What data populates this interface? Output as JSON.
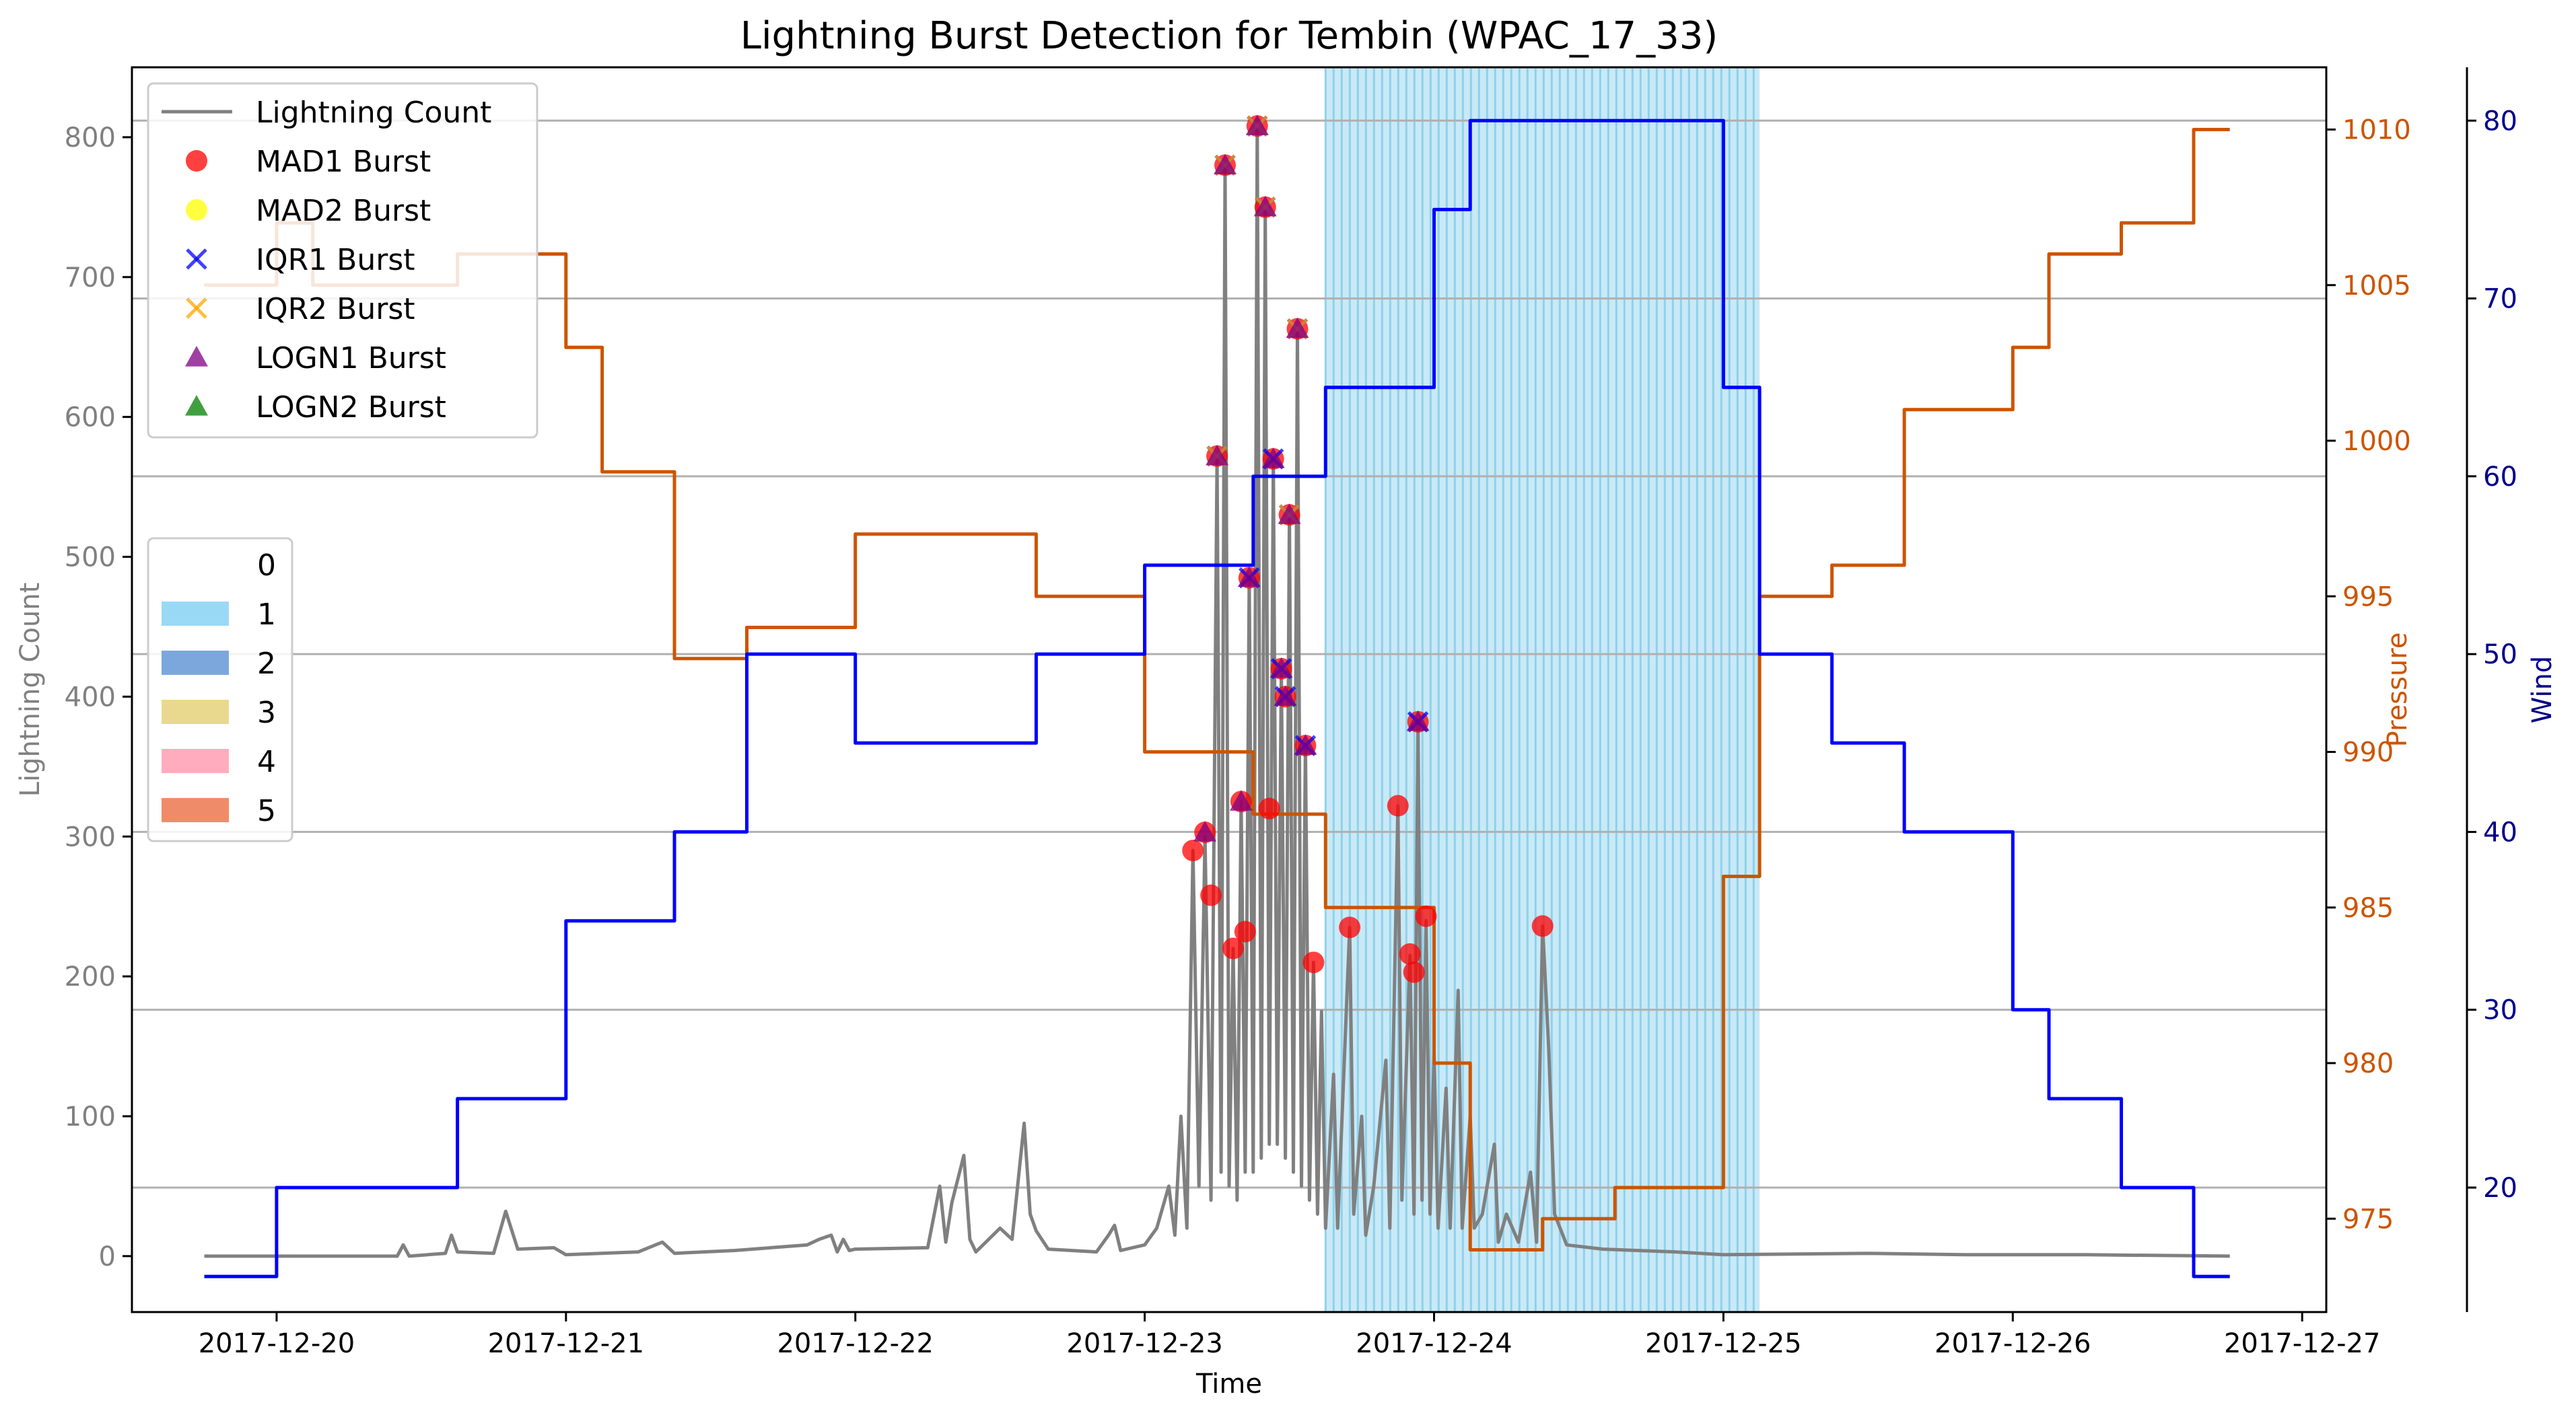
{
  "colors": {
    "lightning": "#808080",
    "pressure": "#cc5500",
    "wind": "#0000ff",
    "wind_axis": "#00008b",
    "category1_shading": "#87ceeb",
    "mad1": "#ff0000",
    "mad2": "#ffff00",
    "iqr1": "#0000ff",
    "iqr2": "#ffa500",
    "logn1": "#800080",
    "logn2": "#008000",
    "cat1": "#9ad9f5",
    "cat2": "#7ba7dc",
    "cat3": "#e8d98e",
    "cat4": "#ffadbe",
    "cat5": "#f08b6a"
  },
  "chart_data": {
    "type": "line",
    "title": "Lightning Burst Detection for Tembin (WPAC_17_33)",
    "xlabel": "Time",
    "ylabel_left": "Lightning Count",
    "ylabel_right1": "Pressure",
    "ylabel_right2": "Wind",
    "x_range_days": [
      "2017-12-19 12:00",
      "2017-12-27 02:00"
    ],
    "y_left_range": [
      -40,
      850
    ],
    "y_pressure_range": [
      972,
      1012
    ],
    "y_wind_range": [
      13,
      83
    ],
    "x_ticks": [
      "2017-12-20",
      "2017-12-21",
      "2017-12-22",
      "2017-12-23",
      "2017-12-24",
      "2017-12-25",
      "2017-12-26",
      "2017-12-27"
    ],
    "y_left_ticks": [
      "0",
      "100",
      "200",
      "300",
      "400",
      "500",
      "600",
      "700",
      "800"
    ],
    "y_pressure_ticks": [
      "975",
      "980",
      "985",
      "990",
      "995",
      "1000",
      "1005",
      "1010"
    ],
    "y_wind_ticks": [
      "20",
      "30",
      "40",
      "50",
      "60",
      "70",
      "80"
    ],
    "wind_grid_values": [
      20,
      30,
      40,
      50,
      60,
      70,
      80
    ],
    "legend_main": {
      "placement": "upper-left",
      "entries": [
        "Lightning Count",
        "MAD1 Burst",
        "MAD2 Burst",
        "IQR1 Burst",
        "IQR2 Burst",
        "LOGN1 Burst",
        "LOGN2 Burst"
      ]
    },
    "legend_category": {
      "placement": "center-left",
      "entries": [
        "0",
        "1",
        "2",
        "3",
        "4",
        "5"
      ]
    },
    "category1_span": [
      "2017-12-23 15:00",
      "2017-12-25 03:00"
    ],
    "pressure_series": {
      "name": "Pressure",
      "points": [
        [
          "2017-12-19 18:00",
          1005
        ],
        [
          "2017-12-20 00:00",
          1005
        ],
        [
          "2017-12-20 00:00",
          1007
        ],
        [
          "2017-12-20 03:00",
          1007
        ],
        [
          "2017-12-20 03:00",
          1005
        ],
        [
          "2017-12-20 15:00",
          1005
        ],
        [
          "2017-12-20 15:00",
          1006
        ],
        [
          "2017-12-21 00:00",
          1006
        ],
        [
          "2017-12-21 00:00",
          1003
        ],
        [
          "2017-12-21 03:00",
          1003
        ],
        [
          "2017-12-21 03:00",
          999
        ],
        [
          "2017-12-21 09:00",
          999
        ],
        [
          "2017-12-21 09:00",
          993
        ],
        [
          "2017-12-21 15:00",
          993
        ],
        [
          "2017-12-21 15:00",
          994
        ],
        [
          "2017-12-22 00:00",
          994
        ],
        [
          "2017-12-22 00:00",
          997
        ],
        [
          "2017-12-22 15:00",
          997
        ],
        [
          "2017-12-22 15:00",
          995
        ],
        [
          "2017-12-23 00:00",
          995
        ],
        [
          "2017-12-23 00:00",
          990
        ],
        [
          "2017-12-23 09:00",
          990
        ],
        [
          "2017-12-23 09:00",
          988
        ],
        [
          "2017-12-23 15:00",
          988
        ],
        [
          "2017-12-23 15:00",
          985
        ],
        [
          "2017-12-24 00:00",
          985
        ],
        [
          "2017-12-24 00:00",
          980
        ],
        [
          "2017-12-24 03:00",
          980
        ],
        [
          "2017-12-24 03:00",
          974
        ],
        [
          "2017-12-24 09:00",
          974
        ],
        [
          "2017-12-24 09:00",
          975
        ],
        [
          "2017-12-24 15:00",
          975
        ],
        [
          "2017-12-24 15:00",
          976
        ],
        [
          "2017-12-25 00:00",
          976
        ],
        [
          "2017-12-25 00:00",
          986
        ],
        [
          "2017-12-25 03:00",
          986
        ],
        [
          "2017-12-25 03:00",
          995
        ],
        [
          "2017-12-25 09:00",
          995
        ],
        [
          "2017-12-25 09:00",
          996
        ],
        [
          "2017-12-25 15:00",
          996
        ],
        [
          "2017-12-25 15:00",
          1001
        ],
        [
          "2017-12-26 00:00",
          1001
        ],
        [
          "2017-12-26 00:00",
          1003
        ],
        [
          "2017-12-26 03:00",
          1003
        ],
        [
          "2017-12-26 03:00",
          1006
        ],
        [
          "2017-12-26 09:00",
          1006
        ],
        [
          "2017-12-26 09:00",
          1007
        ],
        [
          "2017-12-26 15:00",
          1007
        ],
        [
          "2017-12-26 15:00",
          1010
        ],
        [
          "2017-12-26 18:00",
          1010
        ]
      ]
    },
    "wind_series": {
      "name": "Wind",
      "points": [
        [
          "2017-12-19 18:00",
          15
        ],
        [
          "2017-12-20 00:00",
          15
        ],
        [
          "2017-12-20 00:00",
          20
        ],
        [
          "2017-12-20 15:00",
          20
        ],
        [
          "2017-12-20 15:00",
          25
        ],
        [
          "2017-12-21 00:00",
          25
        ],
        [
          "2017-12-21 00:00",
          35
        ],
        [
          "2017-12-21 09:00",
          35
        ],
        [
          "2017-12-21 09:00",
          40
        ],
        [
          "2017-12-21 15:00",
          40
        ],
        [
          "2017-12-21 15:00",
          50
        ],
        [
          "2017-12-22 00:00",
          50
        ],
        [
          "2017-12-22 00:00",
          45
        ],
        [
          "2017-12-22 15:00",
          45
        ],
        [
          "2017-12-22 15:00",
          50
        ],
        [
          "2017-12-23 00:00",
          50
        ],
        [
          "2017-12-23 00:00",
          55
        ],
        [
          "2017-12-23 09:00",
          55
        ],
        [
          "2017-12-23 09:00",
          60
        ],
        [
          "2017-12-23 15:00",
          60
        ],
        [
          "2017-12-23 15:00",
          65
        ],
        [
          "2017-12-24 00:00",
          65
        ],
        [
          "2017-12-24 00:00",
          75
        ],
        [
          "2017-12-24 03:00",
          75
        ],
        [
          "2017-12-24 03:00",
          80
        ],
        [
          "2017-12-25 00:00",
          80
        ],
        [
          "2017-12-25 00:00",
          65
        ],
        [
          "2017-12-25 03:00",
          65
        ],
        [
          "2017-12-25 03:00",
          50
        ],
        [
          "2017-12-25 09:00",
          50
        ],
        [
          "2017-12-25 09:00",
          45
        ],
        [
          "2017-12-25 15:00",
          45
        ],
        [
          "2017-12-25 15:00",
          40
        ],
        [
          "2017-12-26 00:00",
          40
        ],
        [
          "2017-12-26 00:00",
          30
        ],
        [
          "2017-12-26 03:00",
          30
        ],
        [
          "2017-12-26 03:00",
          25
        ],
        [
          "2017-12-26 09:00",
          25
        ],
        [
          "2017-12-26 09:00",
          20
        ],
        [
          "2017-12-26 15:00",
          20
        ],
        [
          "2017-12-26 15:00",
          15
        ],
        [
          "2017-12-26 18:00",
          15
        ]
      ]
    },
    "lightning_series": {
      "name": "Lightning Count",
      "points": [
        [
          "2017-12-19 18:00",
          0
        ],
        [
          "2017-12-20 10:00",
          0
        ],
        [
          "2017-12-20 10:30",
          8
        ],
        [
          "2017-12-20 11:00",
          0
        ],
        [
          "2017-12-20 14:00",
          2
        ],
        [
          "2017-12-20 14:30",
          15
        ],
        [
          "2017-12-20 15:00",
          3
        ],
        [
          "2017-12-20 18:00",
          2
        ],
        [
          "2017-12-20 19:00",
          32
        ],
        [
          "2017-12-20 20:00",
          5
        ],
        [
          "2017-12-20 23:00",
          6
        ],
        [
          "2017-12-21 00:00",
          1
        ],
        [
          "2017-12-21 06:00",
          3
        ],
        [
          "2017-12-21 08:00",
          10
        ],
        [
          "2017-12-21 09:00",
          2
        ],
        [
          "2017-12-21 14:00",
          4
        ],
        [
          "2017-12-21 20:00",
          8
        ],
        [
          "2017-12-21 21:00",
          12
        ],
        [
          "2017-12-21 22:00",
          15
        ],
        [
          "2017-12-21 22:30",
          3
        ],
        [
          "2017-12-21 23:00",
          12
        ],
        [
          "2017-12-21 23:30",
          4
        ],
        [
          "2017-12-22 00:00",
          5
        ],
        [
          "2017-12-22 06:00",
          6
        ],
        [
          "2017-12-22 07:00",
          50
        ],
        [
          "2017-12-22 07:30",
          10
        ],
        [
          "2017-12-22 08:00",
          38
        ],
        [
          "2017-12-22 09:00",
          72
        ],
        [
          "2017-12-22 09:30",
          12
        ],
        [
          "2017-12-22 10:00",
          3
        ],
        [
          "2017-12-22 12:00",
          20
        ],
        [
          "2017-12-22 13:00",
          12
        ],
        [
          "2017-12-22 14:00",
          95
        ],
        [
          "2017-12-22 14:30",
          30
        ],
        [
          "2017-12-22 15:00",
          18
        ],
        [
          "2017-12-22 16:00",
          5
        ],
        [
          "2017-12-22 20:00",
          3
        ],
        [
          "2017-12-22 21:00",
          15
        ],
        [
          "2017-12-22 21:30",
          22
        ],
        [
          "2017-12-22 22:00",
          4
        ],
        [
          "2017-12-23 00:00",
          8
        ],
        [
          "2017-12-23 01:00",
          20
        ],
        [
          "2017-12-23 02:00",
          50
        ],
        [
          "2017-12-23 02:30",
          15
        ],
        [
          "2017-12-23 03:00",
          100
        ],
        [
          "2017-12-23 03:30",
          20
        ],
        [
          "2017-12-23 04:00",
          290
        ],
        [
          "2017-12-23 04:30",
          50
        ],
        [
          "2017-12-23 05:00",
          300
        ],
        [
          "2017-12-23 05:30",
          40
        ],
        [
          "2017-12-23 06:00",
          572
        ],
        [
          "2017-12-23 06:20",
          60
        ],
        [
          "2017-12-23 06:40",
          780
        ],
        [
          "2017-12-23 07:00",
          50
        ],
        [
          "2017-12-23 07:20",
          220
        ],
        [
          "2017-12-23 07:40",
          40
        ],
        [
          "2017-12-23 08:00",
          325
        ],
        [
          "2017-12-23 08:20",
          60
        ],
        [
          "2017-12-23 08:40",
          485
        ],
        [
          "2017-12-23 09:00",
          60
        ],
        [
          "2017-12-23 09:20",
          808
        ],
        [
          "2017-12-23 09:40",
          70
        ],
        [
          "2017-12-23 10:00",
          750
        ],
        [
          "2017-12-23 10:20",
          80
        ],
        [
          "2017-12-23 10:40",
          570
        ],
        [
          "2017-12-23 11:00",
          80
        ],
        [
          "2017-12-23 11:20",
          420
        ],
        [
          "2017-12-23 11:40",
          70
        ],
        [
          "2017-12-23 12:00",
          530
        ],
        [
          "2017-12-23 12:20",
          60
        ],
        [
          "2017-12-23 12:40",
          663
        ],
        [
          "2017-12-23 13:00",
          50
        ],
        [
          "2017-12-23 13:20",
          365
        ],
        [
          "2017-12-23 13:40",
          40
        ],
        [
          "2017-12-23 14:00",
          210
        ],
        [
          "2017-12-23 14:20",
          30
        ],
        [
          "2017-12-23 14:40",
          175
        ],
        [
          "2017-12-23 15:00",
          20
        ],
        [
          "2017-12-23 15:40",
          130
        ],
        [
          "2017-12-23 16:00",
          20
        ],
        [
          "2017-12-23 17:00",
          235
        ],
        [
          "2017-12-23 17:20",
          30
        ],
        [
          "2017-12-23 18:00",
          100
        ],
        [
          "2017-12-23 18:20",
          15
        ],
        [
          "2017-12-23 19:00",
          50
        ],
        [
          "2017-12-23 20:00",
          140
        ],
        [
          "2017-12-23 20:20",
          20
        ],
        [
          "2017-12-23 21:00",
          322
        ],
        [
          "2017-12-23 21:20",
          40
        ],
        [
          "2017-12-23 22:00",
          215
        ],
        [
          "2017-12-23 22:20",
          30
        ],
        [
          "2017-12-23 22:40",
          380
        ],
        [
          "2017-12-23 23:00",
          40
        ],
        [
          "2017-12-23 23:20",
          240
        ],
        [
          "2017-12-23 23:40",
          30
        ],
        [
          "2017-12-24 00:00",
          145
        ],
        [
          "2017-12-24 00:20",
          20
        ],
        [
          "2017-12-24 01:00",
          120
        ],
        [
          "2017-12-24 01:20",
          20
        ],
        [
          "2017-12-24 02:00",
          190
        ],
        [
          "2017-12-24 02:20",
          20
        ],
        [
          "2017-12-24 03:00",
          100
        ],
        [
          "2017-12-24 03:20",
          20
        ],
        [
          "2017-12-24 04:00",
          30
        ],
        [
          "2017-12-24 05:00",
          80
        ],
        [
          "2017-12-24 05:20",
          10
        ],
        [
          "2017-12-24 06:00",
          30
        ],
        [
          "2017-12-24 07:00",
          10
        ],
        [
          "2017-12-24 08:00",
          60
        ],
        [
          "2017-12-24 08:30",
          10
        ],
        [
          "2017-12-24 09:00",
          236
        ],
        [
          "2017-12-24 09:30",
          150
        ],
        [
          "2017-12-24 10:00",
          30
        ],
        [
          "2017-12-24 11:00",
          8
        ],
        [
          "2017-12-24 14:00",
          5
        ],
        [
          "2017-12-24 20:00",
          3
        ],
        [
          "2017-12-25 00:00",
          1
        ],
        [
          "2017-12-25 12:00",
          2
        ],
        [
          "2017-12-25 20:00",
          1
        ],
        [
          "2017-12-26 06:00",
          1
        ],
        [
          "2017-12-26 18:00",
          0
        ]
      ]
    },
    "bursts": {
      "mad1": [
        [
          "2017-12-23 04:00",
          290
        ],
        [
          "2017-12-23 05:00",
          303
        ],
        [
          "2017-12-23 05:30",
          258
        ],
        [
          "2017-12-23 06:00",
          572
        ],
        [
          "2017-12-23 06:40",
          780
        ],
        [
          "2017-12-23 07:20",
          220
        ],
        [
          "2017-12-23 08:00",
          325
        ],
        [
          "2017-12-23 08:20",
          232
        ],
        [
          "2017-12-23 08:40",
          485
        ],
        [
          "2017-12-23 09:20",
          808
        ],
        [
          "2017-12-23 10:00",
          750
        ],
        [
          "2017-12-23 10:40",
          570
        ],
        [
          "2017-12-23 10:20",
          320
        ],
        [
          "2017-12-23 11:20",
          420
        ],
        [
          "2017-12-23 11:40",
          400
        ],
        [
          "2017-12-23 12:00",
          530
        ],
        [
          "2017-12-23 12:40",
          663
        ],
        [
          "2017-12-23 13:20",
          365
        ],
        [
          "2017-12-23 14:00",
          210
        ],
        [
          "2017-12-23 17:00",
          235
        ],
        [
          "2017-12-23 21:00",
          322
        ],
        [
          "2017-12-23 22:00",
          216
        ],
        [
          "2017-12-23 22:20",
          203
        ],
        [
          "2017-12-23 22:40",
          382
        ],
        [
          "2017-12-23 23:20",
          243
        ],
        [
          "2017-12-24 09:00",
          236
        ]
      ],
      "iqr1": [
        [
          "2017-12-23 06:00",
          572
        ],
        [
          "2017-12-23 06:40",
          780
        ],
        [
          "2017-12-23 08:40",
          485
        ],
        [
          "2017-12-23 09:20",
          808
        ],
        [
          "2017-12-23 10:00",
          750
        ],
        [
          "2017-12-23 10:40",
          570
        ],
        [
          "2017-12-23 11:20",
          420
        ],
        [
          "2017-12-23 11:40",
          400
        ],
        [
          "2017-12-23 12:00",
          530
        ],
        [
          "2017-12-23 12:40",
          663
        ],
        [
          "2017-12-23 13:20",
          365
        ],
        [
          "2017-12-23 22:40",
          382
        ]
      ],
      "iqr2": [
        [
          "2017-12-23 06:00",
          572
        ],
        [
          "2017-12-23 06:40",
          780
        ],
        [
          "2017-12-23 09:20",
          808
        ],
        [
          "2017-12-23 10:00",
          750
        ],
        [
          "2017-12-23 12:00",
          530
        ],
        [
          "2017-12-23 12:40",
          663
        ]
      ],
      "logn1": [
        [
          "2017-12-23 05:00",
          303
        ],
        [
          "2017-12-23 06:00",
          572
        ],
        [
          "2017-12-23 06:40",
          780
        ],
        [
          "2017-12-23 08:00",
          325
        ],
        [
          "2017-12-23 08:40",
          485
        ],
        [
          "2017-12-23 09:20",
          808
        ],
        [
          "2017-12-23 10:00",
          750
        ],
        [
          "2017-12-23 10:40",
          570
        ],
        [
          "2017-12-23 11:20",
          420
        ],
        [
          "2017-12-23 11:40",
          400
        ],
        [
          "2017-12-23 12:00",
          530
        ],
        [
          "2017-12-23 12:40",
          663
        ],
        [
          "2017-12-23 13:20",
          365
        ],
        [
          "2017-12-23 22:40",
          382
        ]
      ]
    }
  }
}
